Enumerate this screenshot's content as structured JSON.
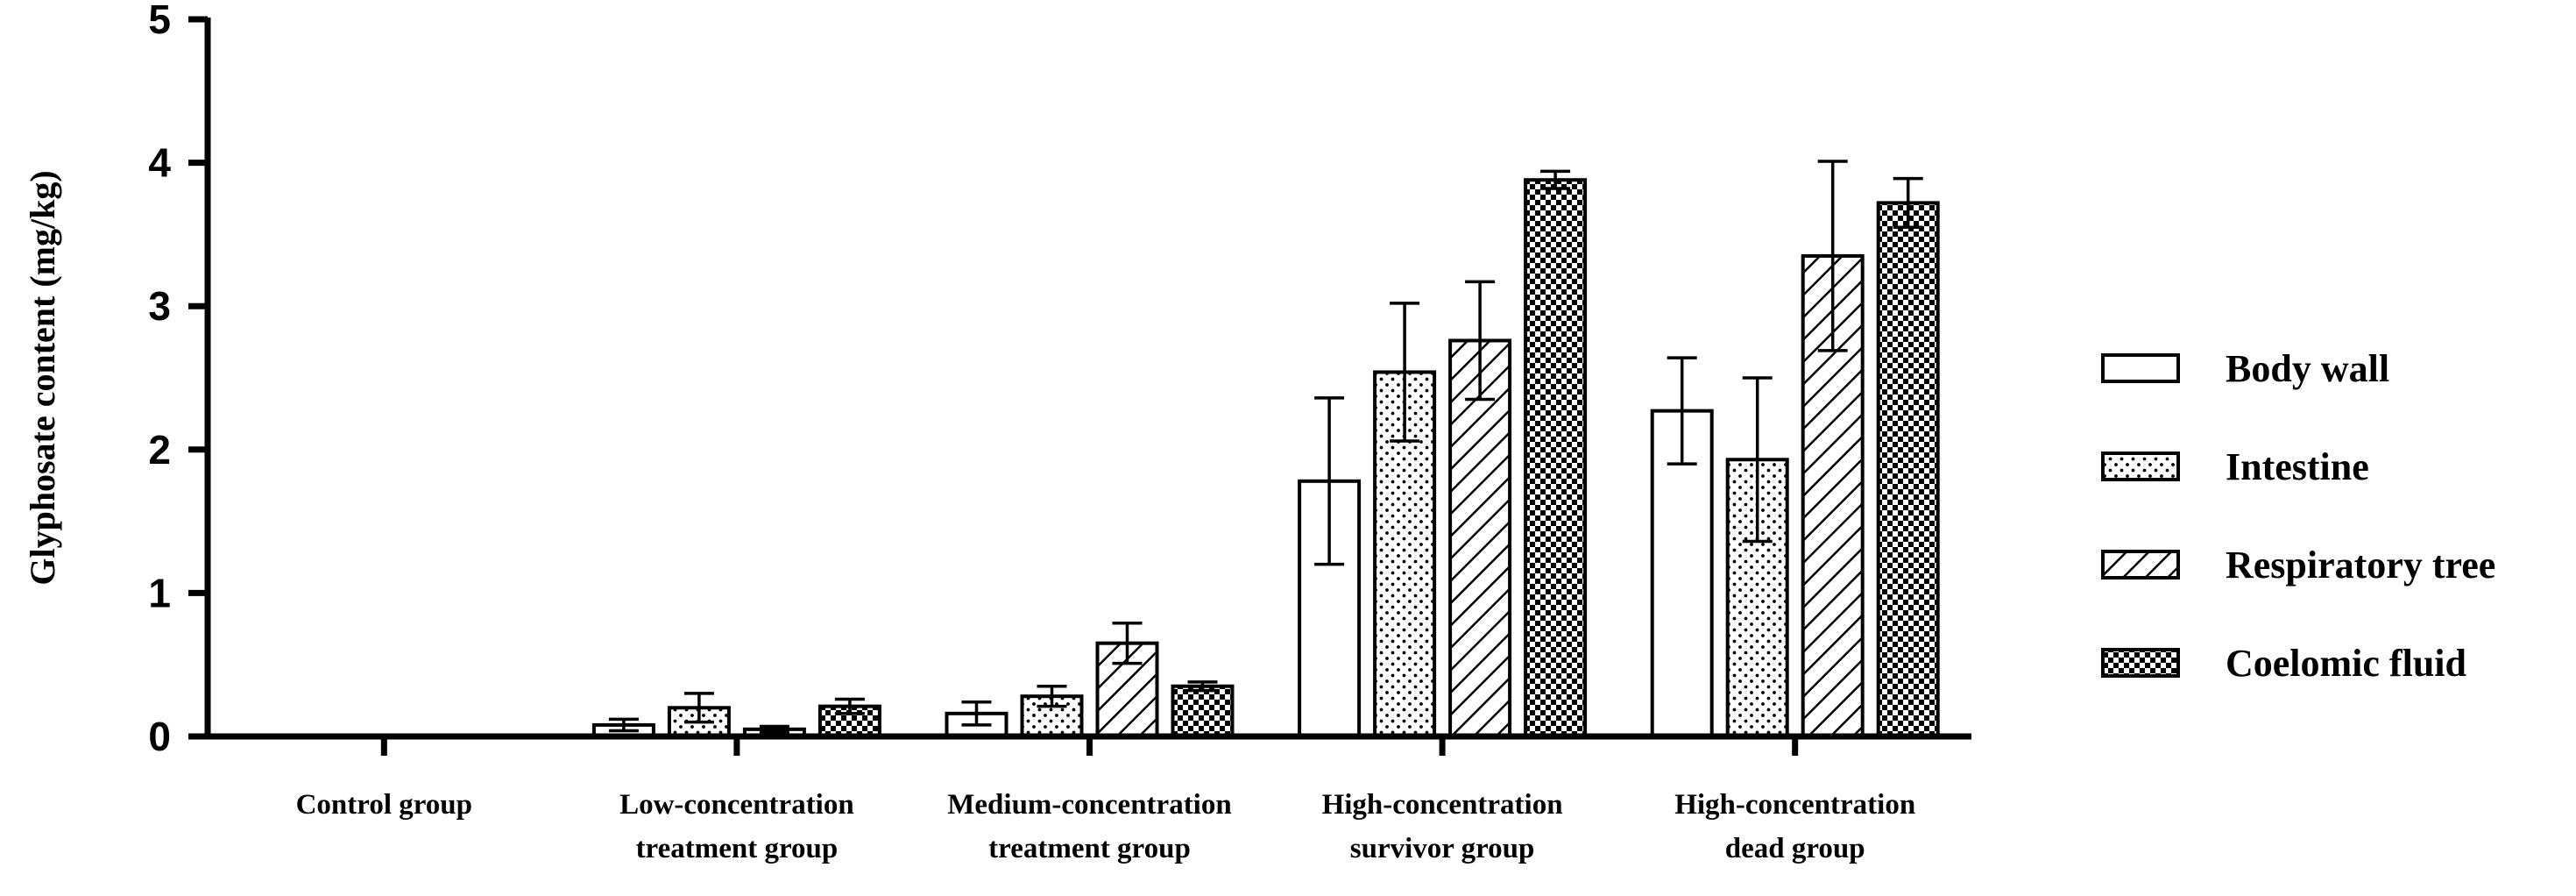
{
  "chart_data": {
    "type": "bar",
    "title": "",
    "xlabel": "",
    "ylabel": "Glyphosate content (mg/kg)",
    "ylim": [
      0,
      5
    ],
    "yticks": [
      "0",
      "1",
      "2",
      "3",
      "4",
      "5"
    ],
    "grid": false,
    "legend_position": "right",
    "categories": [
      [
        "Control group"
      ],
      [
        "Low-concentration",
        "treatment group"
      ],
      [
        "Medium-concentration",
        "treatment group"
      ],
      [
        "High-concentration",
        "survivor group"
      ],
      [
        "High-concentration",
        "dead group"
      ]
    ],
    "series": [
      {
        "name": "Body wall",
        "pattern": "white",
        "values": [
          0.0,
          0.08,
          0.16,
          1.78,
          2.27
        ],
        "errors": [
          0.0,
          0.04,
          0.08,
          0.58,
          0.37
        ]
      },
      {
        "name": "Intestine",
        "pattern": "dots",
        "values": [
          0.0,
          0.2,
          0.28,
          2.54,
          1.93
        ],
        "errors": [
          0.0,
          0.1,
          0.07,
          0.48,
          0.57
        ]
      },
      {
        "name": "Respiratory tree",
        "pattern": "hatch",
        "values": [
          0.0,
          0.05,
          0.65,
          2.76,
          3.35
        ],
        "errors": [
          0.0,
          0.02,
          0.14,
          0.41,
          0.66
        ]
      },
      {
        "name": "Coelomic fluid",
        "pattern": "checker",
        "values": [
          0.0,
          0.21,
          0.35,
          3.88,
          3.72
        ],
        "errors": [
          0.0,
          0.05,
          0.03,
          0.06,
          0.17
        ]
      }
    ],
    "colors": {
      "stroke": "#000000",
      "fill": "#ffffff",
      "pattern": "#000000"
    }
  }
}
